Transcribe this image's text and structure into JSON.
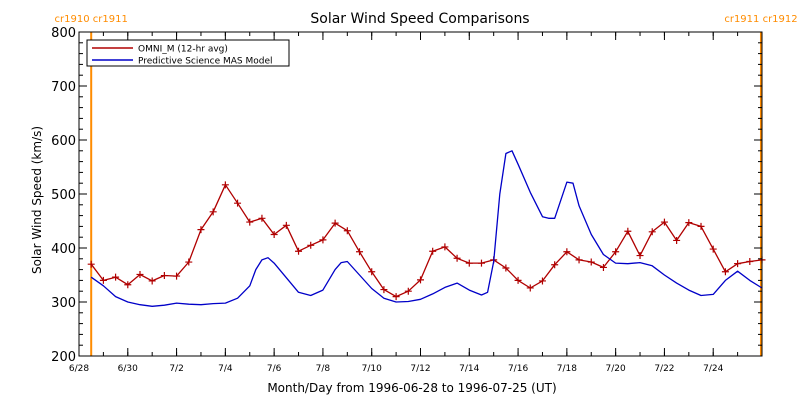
{
  "chart_data": {
    "type": "line",
    "title": "Solar Wind Speed Comparisons",
    "xlabel": "Month/Day from 1996-06-28 to 1996-07-25 (UT)",
    "ylabel": "Solar Wind Speed (km/s)",
    "xlim": [
      "1996-06-28",
      "1996-07-26"
    ],
    "ylim": [
      200,
      800
    ],
    "y_ticks": [
      200,
      300,
      400,
      500,
      600,
      700,
      800
    ],
    "x_ticks": [
      {
        "date": "1996-06-28",
        "label": "6/28"
      },
      {
        "date": "1996-06-30",
        "label": "6/30"
      },
      {
        "date": "1996-07-02",
        "label": "7/2"
      },
      {
        "date": "1996-07-04",
        "label": "7/4"
      },
      {
        "date": "1996-07-06",
        "label": "7/6"
      },
      {
        "date": "1996-07-08",
        "label": "7/8"
      },
      {
        "date": "1996-07-10",
        "label": "7/10"
      },
      {
        "date": "1996-07-12",
        "label": "7/12"
      },
      {
        "date": "1996-07-14",
        "label": "7/14"
      },
      {
        "date": "1996-07-16",
        "label": "7/16"
      },
      {
        "date": "1996-07-18",
        "label": "7/18"
      },
      {
        "date": "1996-07-20",
        "label": "7/20"
      },
      {
        "date": "1996-07-22",
        "label": "7/22"
      },
      {
        "date": "1996-07-24",
        "label": "7/24"
      }
    ],
    "legend": "top-left",
    "grid": false,
    "markers": [
      {
        "date": "1996-06-28T12:00",
        "label": "cr1910 cr1911",
        "color": "#ff8c00"
      },
      {
        "date": "1996-07-25T23:00",
        "label": "cr1911 cr1912",
        "color": "#ff8c00"
      }
    ],
    "series": [
      {
        "name": "OMNI_M (12-hr avg)",
        "color": "#b00000",
        "marker": "plus",
        "x": [
          "1996-06-28T12:00",
          "1996-06-29T00:00",
          "1996-06-29T12:00",
          "1996-06-30T00:00",
          "1996-06-30T12:00",
          "1996-07-01T00:00",
          "1996-07-01T12:00",
          "1996-07-02T00:00",
          "1996-07-02T12:00",
          "1996-07-03T00:00",
          "1996-07-03T12:00",
          "1996-07-04T00:00",
          "1996-07-04T12:00",
          "1996-07-05T00:00",
          "1996-07-05T12:00",
          "1996-07-06T00:00",
          "1996-07-06T12:00",
          "1996-07-07T00:00",
          "1996-07-07T12:00",
          "1996-07-08T00:00",
          "1996-07-08T12:00",
          "1996-07-09T00:00",
          "1996-07-09T12:00",
          "1996-07-10T00:00",
          "1996-07-10T12:00",
          "1996-07-11T00:00",
          "1996-07-11T12:00",
          "1996-07-12T00:00",
          "1996-07-12T12:00",
          "1996-07-13T00:00",
          "1996-07-13T12:00",
          "1996-07-14T00:00",
          "1996-07-14T12:00",
          "1996-07-15T00:00",
          "1996-07-15T12:00",
          "1996-07-16T00:00",
          "1996-07-16T12:00",
          "1996-07-17T00:00",
          "1996-07-17T12:00",
          "1996-07-18T00:00",
          "1996-07-18T12:00",
          "1996-07-19T00:00",
          "1996-07-19T12:00",
          "1996-07-20T00:00",
          "1996-07-20T12:00",
          "1996-07-21T00:00",
          "1996-07-21T12:00",
          "1996-07-22T00:00",
          "1996-07-22T12:00",
          "1996-07-23T00:00",
          "1996-07-23T12:00",
          "1996-07-24T00:00",
          "1996-07-24T12:00",
          "1996-07-25T00:00",
          "1996-07-25T12:00",
          "1996-07-26T00:00"
        ],
        "values": [
          370,
          340,
          346,
          332,
          351,
          339,
          349,
          348,
          374,
          434,
          467,
          517,
          483,
          448,
          455,
          425,
          442,
          394,
          405,
          415,
          446,
          432,
          393,
          356,
          323,
          310,
          320,
          341,
          394,
          402,
          381,
          372,
          372,
          378,
          363,
          340,
          326,
          339,
          369,
          393,
          378,
          374,
          364,
          393,
          431,
          386,
          430,
          448,
          414,
          447,
          440,
          398,
          356,
          371,
          375,
          378
        ]
      },
      {
        "name": "Predictive Science MAS Model",
        "color": "#0000c8",
        "marker": "none",
        "x": [
          "1996-06-28T12:00",
          "1996-06-29T00:00",
          "1996-06-29T12:00",
          "1996-06-30T00:00",
          "1996-06-30T12:00",
          "1996-07-01T00:00",
          "1996-07-01T12:00",
          "1996-07-02T00:00",
          "1996-07-02T12:00",
          "1996-07-03T00:00",
          "1996-07-03T12:00",
          "1996-07-04T00:00",
          "1996-07-04T12:00",
          "1996-07-05T00:00",
          "1996-07-05T06:00",
          "1996-07-05T12:00",
          "1996-07-05T18:00",
          "1996-07-06T00:00",
          "1996-07-06T12:00",
          "1996-07-07T00:00",
          "1996-07-07T12:00",
          "1996-07-08T00:00",
          "1996-07-08T12:00",
          "1996-07-08T18:00",
          "1996-07-09T00:00",
          "1996-07-09T12:00",
          "1996-07-10T00:00",
          "1996-07-10T12:00",
          "1996-07-11T00:00",
          "1996-07-11T12:00",
          "1996-07-12T00:00",
          "1996-07-12T12:00",
          "1996-07-13T00:00",
          "1996-07-13T12:00",
          "1996-07-14T00:00",
          "1996-07-14T12:00",
          "1996-07-14T18:00",
          "1996-07-15T00:00",
          "1996-07-15T06:00",
          "1996-07-15T12:00",
          "1996-07-15T18:00",
          "1996-07-16T00:00",
          "1996-07-16T12:00",
          "1996-07-17T00:00",
          "1996-07-17T06:00",
          "1996-07-17T12:00",
          "1996-07-18T00:00",
          "1996-07-18T06:00",
          "1996-07-18T12:00",
          "1996-07-19T00:00",
          "1996-07-19T12:00",
          "1996-07-20T00:00",
          "1996-07-20T12:00",
          "1996-07-21T00:00",
          "1996-07-21T12:00",
          "1996-07-22T00:00",
          "1996-07-22T12:00",
          "1996-07-23T00:00",
          "1996-07-23T12:00",
          "1996-07-24T00:00",
          "1996-07-24T12:00",
          "1996-07-25T00:00",
          "1996-07-25T12:00",
          "1996-07-26T00:00"
        ],
        "values": [
          346,
          330,
          310,
          300,
          295,
          292,
          294,
          298,
          296,
          295,
          297,
          298,
          307,
          330,
          360,
          378,
          382,
          372,
          345,
          318,
          312,
          322,
          360,
          373,
          375,
          350,
          325,
          307,
          300,
          301,
          305,
          315,
          327,
          335,
          322,
          313,
          318,
          375,
          500,
          575,
          580,
          555,
          503,
          458,
          455,
          455,
          522,
          520,
          478,
          425,
          388,
          372,
          371,
          373,
          367,
          350,
          335,
          322,
          312,
          314,
          340,
          357,
          340,
          326
        ]
      }
    ]
  }
}
